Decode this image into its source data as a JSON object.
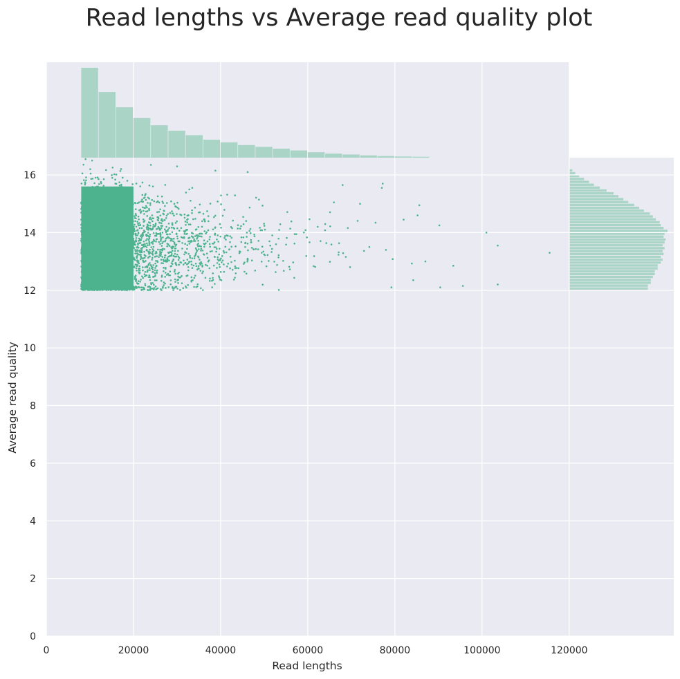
{
  "chart_data": {
    "type": "scatter",
    "title": "Read lengths vs Average read quality plot",
    "xlabel": "Read lengths",
    "ylabel": "Average read quality",
    "xlim": [
      0,
      144000
    ],
    "ylim": [
      0,
      16.6
    ],
    "xticks": [
      "0",
      "20000",
      "40000",
      "60000",
      "80000",
      "100000",
      "120000"
    ],
    "xtick_values": [
      0,
      20000,
      40000,
      60000,
      80000,
      100000,
      120000
    ],
    "yticks": [
      "0",
      "2",
      "4",
      "6",
      "8",
      "10",
      "12",
      "14",
      "16"
    ],
    "ytick_values": [
      0,
      2,
      4,
      6,
      8,
      10,
      12,
      14,
      16
    ],
    "grid": true,
    "point_color": "#4db38e",
    "hist_color": "#a9d4c6",
    "background": "#eaeaf2",
    "dense_region": {
      "x_range": [
        8000,
        20000
      ],
      "y_range": [
        12.0,
        15.6
      ]
    },
    "x_marginal_histogram": {
      "bin_start": 8000,
      "bin_width": 4000,
      "relative_counts": [
        1.0,
        0.73,
        0.56,
        0.44,
        0.36,
        0.3,
        0.25,
        0.2,
        0.17,
        0.14,
        0.12,
        0.1,
        0.08,
        0.06,
        0.045,
        0.035,
        0.025,
        0.018,
        0.013,
        0.01
      ]
    },
    "y_marginal_histogram": {
      "bin_start": 12.0,
      "bin_width": 0.1,
      "relative_counts": [
        0.8,
        0.8,
        0.83,
        0.83,
        0.85,
        0.87,
        0.87,
        0.9,
        0.9,
        0.93,
        0.95,
        0.93,
        0.96,
        0.95,
        0.97,
        0.95,
        0.97,
        0.98,
        0.96,
        0.97,
        1.0,
        0.96,
        0.93,
        0.92,
        0.88,
        0.85,
        0.82,
        0.76,
        0.71,
        0.66,
        0.6,
        0.55,
        0.5,
        0.45,
        0.38,
        0.31,
        0.25,
        0.2,
        0.15,
        0.1,
        0.06,
        0.03
      ]
    },
    "outliers": [
      [
        9000,
        16.55
      ],
      [
        10500,
        16.5
      ],
      [
        24000,
        16.35
      ],
      [
        30000,
        16.3
      ],
      [
        38800,
        16.15
      ],
      [
        46200,
        16.1
      ],
      [
        68000,
        15.65
      ],
      [
        77200,
        15.7
      ],
      [
        77000,
        15.55
      ],
      [
        85600,
        14.95
      ],
      [
        85200,
        14.6
      ],
      [
        90200,
        14.25
      ],
      [
        101000,
        14.0
      ],
      [
        103600,
        13.55
      ],
      [
        115500,
        13.3
      ],
      [
        93400,
        12.85
      ],
      [
        95600,
        12.15
      ],
      [
        103600,
        12.2
      ],
      [
        90400,
        12.1
      ],
      [
        84200,
        12.35
      ],
      [
        79200,
        12.1
      ],
      [
        87000,
        13.0
      ],
      [
        82000,
        14.45
      ],
      [
        66000,
        15.05
      ],
      [
        72000,
        15.0
      ]
    ]
  }
}
